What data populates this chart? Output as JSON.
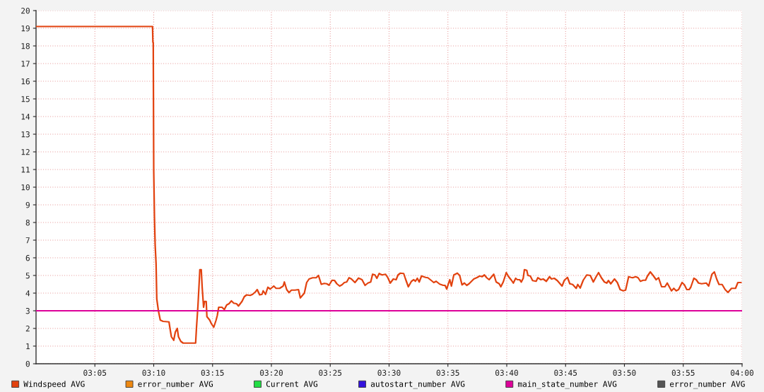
{
  "chart_data": {
    "type": "line",
    "xlim": [
      3.0,
      4.0
    ],
    "ylim": [
      0,
      20
    ],
    "xticks": [
      {
        "value": 3.08333,
        "label": "03:05"
      },
      {
        "value": 3.16667,
        "label": "03:10"
      },
      {
        "value": 3.25,
        "label": "03:15"
      },
      {
        "value": 3.33333,
        "label": "03:20"
      },
      {
        "value": 3.41667,
        "label": "03:25"
      },
      {
        "value": 3.5,
        "label": "03:30"
      },
      {
        "value": 3.58333,
        "label": "03:35"
      },
      {
        "value": 3.66667,
        "label": "03:40"
      },
      {
        "value": 3.75,
        "label": "03:45"
      },
      {
        "value": 3.83333,
        "label": "03:50"
      },
      {
        "value": 3.91667,
        "label": "03:55"
      },
      {
        "value": 4.0,
        "label": "04:00"
      }
    ],
    "yticks": [
      0,
      1,
      2,
      3,
      4,
      5,
      6,
      7,
      8,
      9,
      10,
      11,
      12,
      13,
      14,
      15,
      16,
      17,
      18,
      19,
      20
    ],
    "grid": true,
    "legend": "bottom",
    "line_style": "solid",
    "series": [
      {
        "name": "Windspeed AVG",
        "color": "#e2420f",
        "x": [
          3.0,
          3.165,
          3.1655,
          3.166,
          3.1667,
          3.1677,
          3.1687,
          3.17,
          3.171,
          3.1733,
          3.176,
          3.18,
          3.1883,
          3.19,
          3.1917,
          3.195,
          3.1973,
          3.2,
          3.2017,
          3.205,
          3.2083,
          3.226,
          3.2273,
          3.2293,
          3.2307,
          3.232,
          3.234,
          3.2353,
          3.2367,
          3.2373,
          3.2387,
          3.241,
          3.242,
          3.246,
          3.2483,
          3.2517,
          3.255,
          3.2567,
          3.2587,
          3.2633,
          3.2667,
          3.27,
          3.2733,
          3.2767,
          3.28,
          3.284,
          3.2867,
          3.2917,
          3.295,
          3.2983,
          3.3033,
          3.3067,
          3.3107,
          3.3133,
          3.3167,
          3.32,
          3.3217,
          3.325,
          3.3283,
          3.3317,
          3.3367,
          3.34,
          3.345,
          3.35,
          3.3517,
          3.355,
          3.3583,
          3.3617,
          3.3667,
          3.3717,
          3.3743,
          3.3773,
          3.38,
          3.3833,
          3.3867,
          3.3917,
          3.3967,
          3.4,
          3.404,
          3.4083,
          3.4117,
          3.415,
          3.4193,
          3.4227,
          3.426,
          3.43,
          3.4333,
          3.4367,
          3.44,
          3.4433,
          3.4467,
          3.4517,
          3.4567,
          3.4617,
          3.466,
          3.47,
          3.474,
          3.4767,
          3.48,
          3.4827,
          3.486,
          3.49,
          3.495,
          3.4983,
          3.5017,
          3.506,
          3.51,
          3.5127,
          3.516,
          3.5207,
          3.5233,
          3.5273,
          3.5317,
          3.535,
          3.5373,
          3.54,
          3.5427,
          3.546,
          3.5517,
          3.555,
          3.56,
          3.5633,
          3.5667,
          3.5717,
          3.5767,
          3.5793,
          3.5817,
          3.584,
          3.586,
          3.5883,
          3.5917,
          3.5967,
          3.6,
          3.6033,
          3.6067,
          3.61,
          3.6133,
          3.62,
          3.625,
          3.6283,
          3.6317,
          3.635,
          3.6383,
          3.6417,
          3.6483,
          3.6517,
          3.656,
          3.6583,
          3.6617,
          3.666,
          3.6693,
          3.6733,
          3.676,
          3.6793,
          3.6817,
          3.685,
          3.6873,
          3.69,
          3.6917,
          3.695,
          3.6967,
          3.7,
          3.7033,
          3.7083,
          3.7107,
          3.715,
          3.7183,
          3.7227,
          3.7273,
          3.73,
          3.734,
          3.7383,
          3.745,
          3.7483,
          3.7527,
          3.756,
          3.76,
          3.765,
          3.7673,
          3.7707,
          3.775,
          3.78,
          3.785,
          3.7893,
          3.7933,
          3.7967,
          3.8007,
          3.805,
          3.8083,
          3.8107,
          3.814,
          3.8193,
          3.8233,
          3.8273,
          3.8317,
          3.835,
          3.8393,
          3.8427,
          3.845,
          3.8493,
          3.8527,
          3.856,
          3.86,
          3.8633,
          3.866,
          3.87,
          3.874,
          3.8783,
          3.8817,
          3.886,
          3.8907,
          3.894,
          3.9,
          3.9033,
          3.9067,
          3.91,
          3.915,
          3.9183,
          3.9217,
          3.925,
          3.9273,
          3.9317,
          3.935,
          3.9383,
          3.9427,
          3.9493,
          3.9527,
          3.9573,
          3.9607,
          3.964,
          3.9673,
          3.9717,
          3.976,
          3.98,
          3.985,
          3.9907,
          3.994,
          3.9983
        ],
        "values": [
          19.1,
          19.1,
          18.2,
          18.2,
          10.9,
          8.33,
          6.73,
          5.67,
          3.67,
          3.0,
          2.47,
          2.4,
          2.37,
          1.93,
          1.53,
          1.33,
          1.8,
          2.0,
          1.53,
          1.27,
          1.17,
          1.17,
          2.08,
          3.27,
          4.33,
          5.33,
          5.33,
          4.33,
          3.53,
          3.2,
          3.53,
          3.53,
          2.67,
          2.47,
          2.27,
          2.07,
          2.47,
          2.73,
          3.2,
          3.2,
          3.07,
          3.33,
          3.4,
          3.56,
          3.43,
          3.4,
          3.27,
          3.53,
          3.8,
          3.9,
          3.87,
          3.93,
          4.07,
          4.2,
          3.9,
          3.93,
          4.13,
          3.93,
          4.33,
          4.23,
          4.4,
          4.27,
          4.27,
          4.4,
          4.63,
          4.2,
          4.03,
          4.17,
          4.17,
          4.2,
          3.73,
          3.87,
          4.0,
          4.6,
          4.8,
          4.87,
          4.87,
          5.0,
          4.5,
          4.55,
          4.53,
          4.45,
          4.73,
          4.72,
          4.53,
          4.4,
          4.47,
          4.6,
          4.63,
          4.87,
          4.8,
          4.6,
          4.85,
          4.76,
          4.44,
          4.57,
          4.63,
          5.07,
          5.03,
          4.84,
          5.11,
          5.03,
          5.07,
          4.87,
          4.57,
          4.8,
          4.76,
          5.03,
          5.13,
          5.11,
          4.8,
          4.36,
          4.67,
          4.76,
          4.67,
          4.84,
          4.63,
          4.97,
          4.89,
          4.87,
          4.71,
          4.6,
          4.67,
          4.51,
          4.44,
          4.44,
          4.23,
          4.53,
          4.76,
          4.4,
          5.03,
          5.13,
          5.0,
          4.47,
          4.57,
          4.44,
          4.53,
          4.8,
          4.89,
          4.97,
          4.93,
          5.03,
          4.87,
          4.76,
          5.07,
          4.63,
          4.53,
          4.36,
          4.63,
          5.16,
          4.93,
          4.73,
          4.57,
          4.84,
          4.76,
          4.76,
          4.63,
          4.84,
          5.33,
          5.29,
          5.0,
          4.97,
          4.71,
          4.67,
          4.87,
          4.76,
          4.8,
          4.67,
          4.93,
          4.8,
          4.84,
          4.71,
          4.4,
          4.73,
          4.89,
          4.53,
          4.49,
          4.27,
          4.49,
          4.29,
          4.73,
          5.03,
          5.0,
          4.63,
          4.93,
          5.16,
          4.87,
          4.63,
          4.57,
          4.71,
          4.53,
          4.8,
          4.6,
          4.2,
          4.13,
          4.17,
          4.93,
          4.89,
          4.87,
          4.93,
          4.87,
          4.67,
          4.73,
          4.73,
          4.97,
          5.2,
          5.0,
          4.76,
          4.87,
          4.36,
          4.36,
          4.57,
          4.13,
          4.27,
          4.13,
          4.2,
          4.6,
          4.47,
          4.2,
          4.2,
          4.33,
          4.84,
          4.76,
          4.57,
          4.53,
          4.57,
          4.4,
          5.07,
          5.2,
          4.8,
          4.49,
          4.49,
          4.2,
          4.04,
          4.27,
          4.27,
          4.6,
          4.6
        ]
      },
      {
        "name": "error_number AVG",
        "color": "#ee8811"
      },
      {
        "name": "Current AVG",
        "color": "#22dd44"
      },
      {
        "name": "autostart_number AVG",
        "color": "#3311dd"
      },
      {
        "name": "main_state_number AVG",
        "color": "#dd0099",
        "x": [
          3.0,
          4.0
        ],
        "values": [
          3,
          3
        ]
      },
      {
        "name": "error_number AVG",
        "color": "#555555"
      }
    ]
  }
}
